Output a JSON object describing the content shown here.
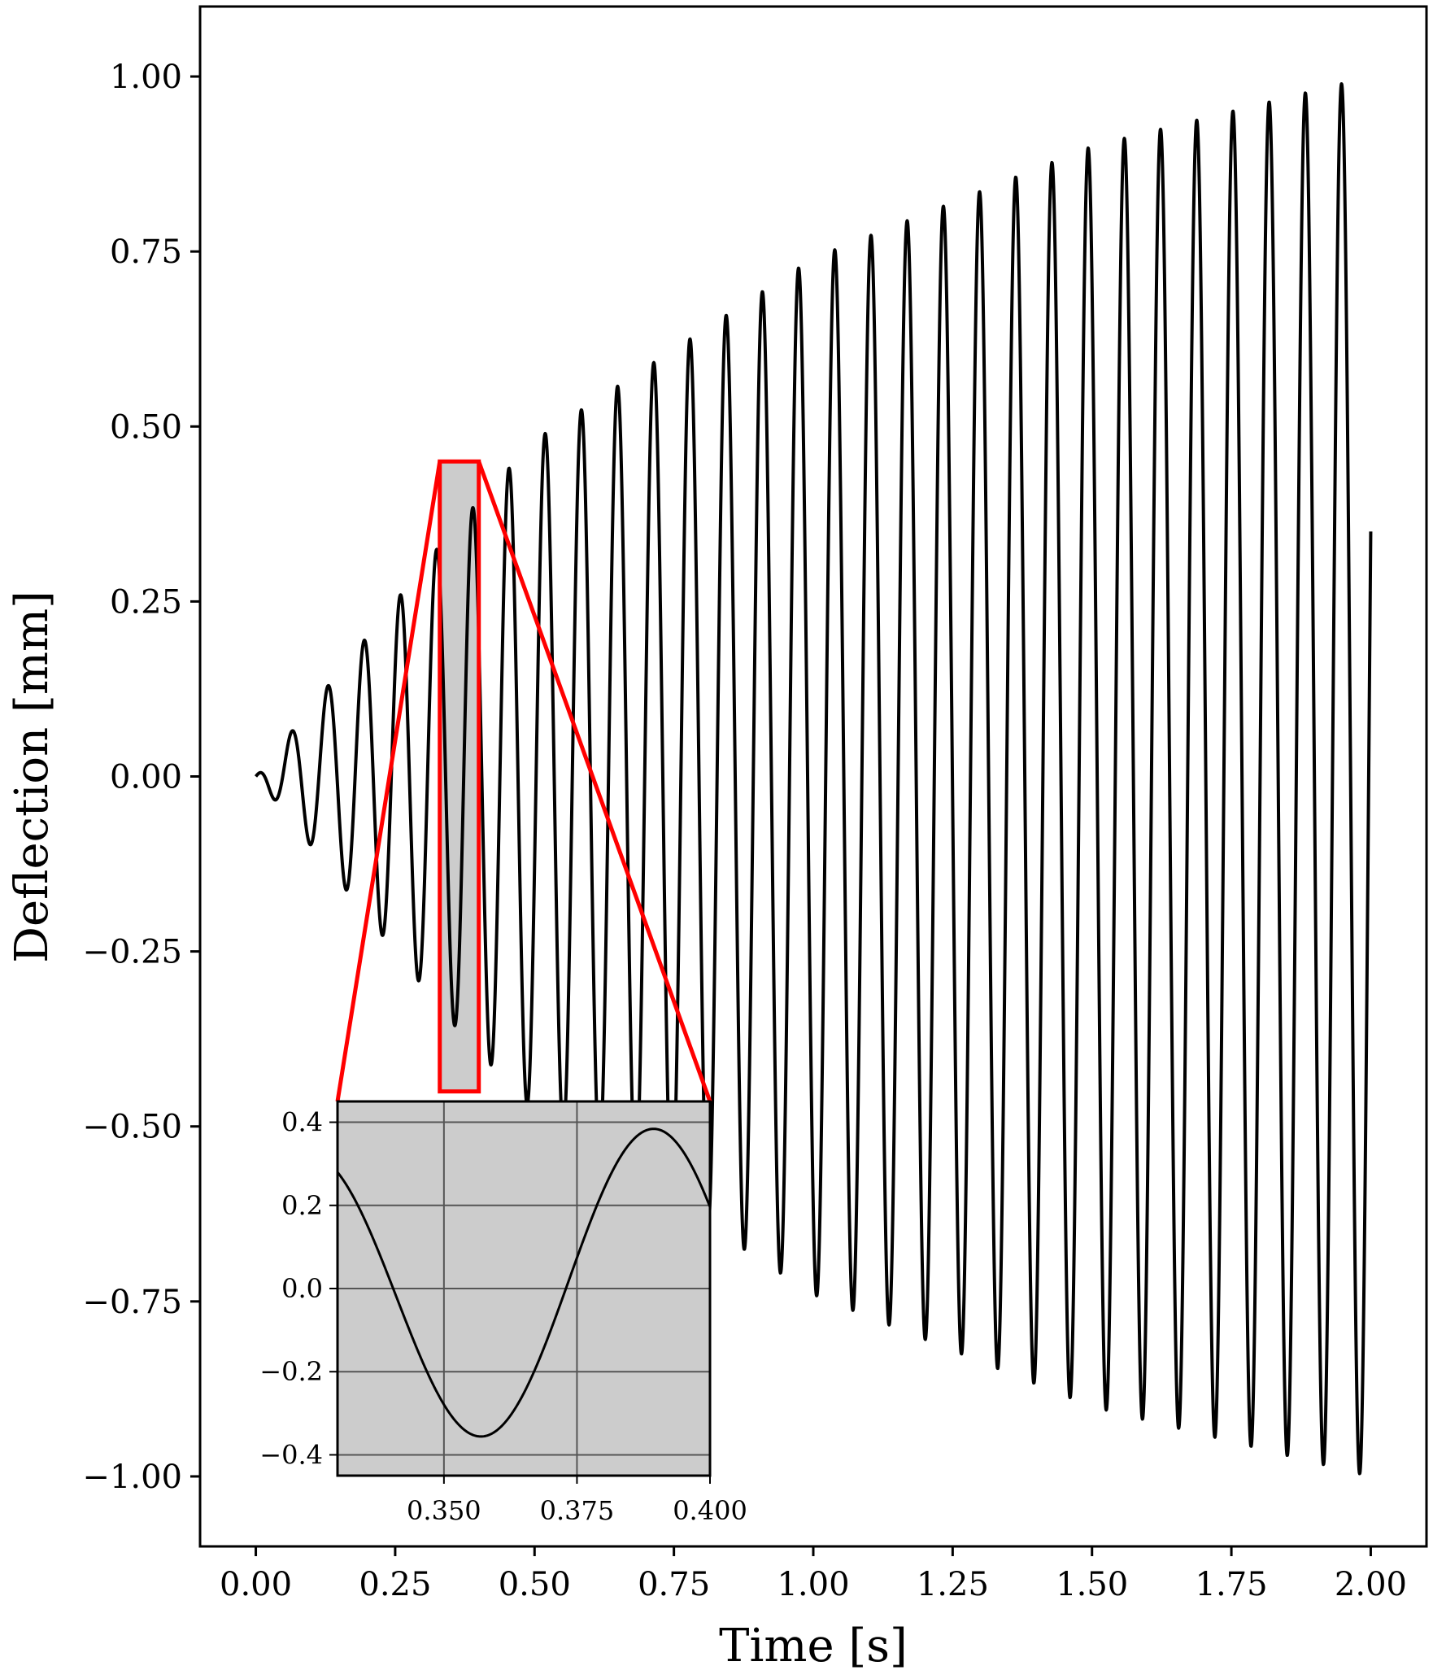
{
  "chart_data": {
    "type": "line",
    "xlabel": "Time [s]",
    "ylabel": "Deflection [mm]",
    "xlim": [
      -0.1,
      2.1
    ],
    "ylim": [
      -1.1,
      1.1
    ],
    "xticks": [
      0,
      0.25,
      0.5,
      0.75,
      1.0,
      1.25,
      1.5,
      1.75,
      2.0
    ],
    "xtick_labels": [
      "0.00",
      "0.25",
      "0.50",
      "0.75",
      "1.00",
      "1.25",
      "1.50",
      "1.75",
      "2.00"
    ],
    "yticks": [
      1.0,
      0.75,
      0.5,
      0.25,
      0.0,
      -0.25,
      -0.5,
      -0.75,
      -1.0
    ],
    "ytick_labels": [
      "1.00",
      "0.75",
      "0.50",
      "0.25",
      "0.00",
      "−0.25",
      "−0.50",
      "−0.75",
      "−1.00"
    ],
    "grid": false,
    "series_color": "#000000",
    "signal": {
      "description_units": "deflection in mm versus time in s",
      "frequency_hz": 15.4,
      "amplitude_peaks": [
        [
          0.0,
          0.0
        ],
        [
          0.1,
          0.1
        ],
        [
          0.35,
          0.35
        ],
        [
          0.5,
          0.48
        ],
        [
          1.0,
          0.74
        ],
        [
          1.5,
          0.9
        ],
        [
          2.0,
          1.0
        ]
      ],
      "end_value": 0.35
    },
    "zoom_region": {
      "x": [
        0.33,
        0.4
      ],
      "y": [
        -0.45,
        0.45
      ],
      "box_color": "#ff0000",
      "fill_color": "#cccccc"
    },
    "inset": {
      "xlim": [
        0.33,
        0.4
      ],
      "ylim": [
        -0.45,
        0.45
      ],
      "xticks": [
        0.35,
        0.375,
        0.4
      ],
      "xtick_labels": [
        "0.350",
        "0.375",
        "0.400"
      ],
      "yticks": [
        0.4,
        0.2,
        0.0,
        -0.2,
        -0.4
      ],
      "ytick_labels": [
        "0.4",
        "0.2",
        "0.0",
        "−0.2",
        "−0.4"
      ],
      "grid": true,
      "background": "#cccccc"
    }
  }
}
